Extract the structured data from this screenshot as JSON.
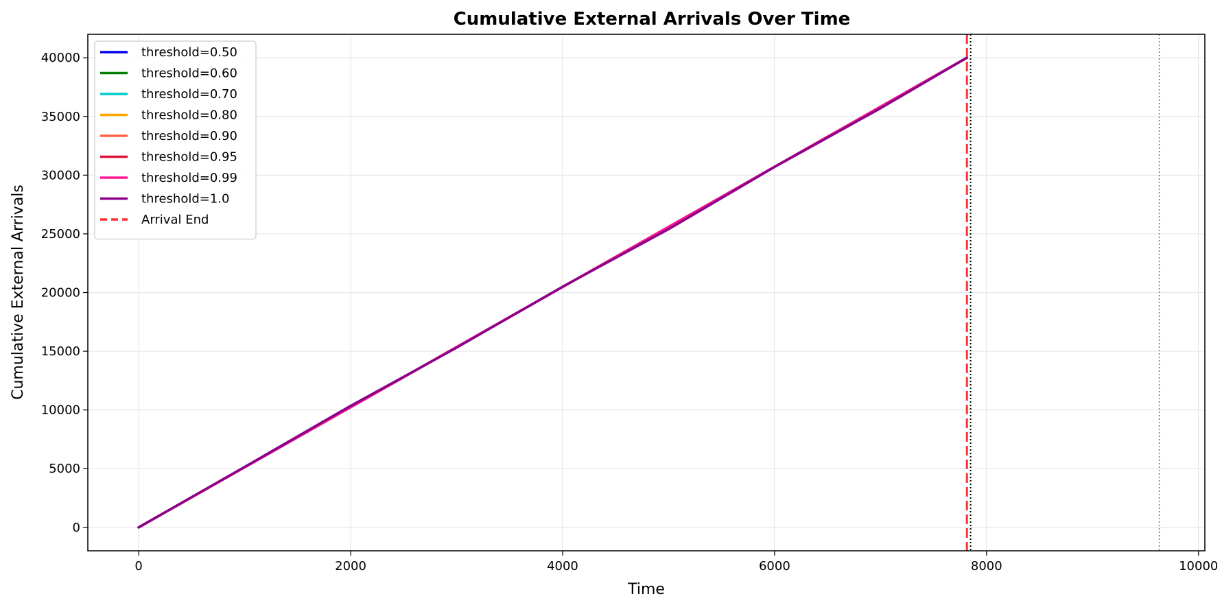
{
  "chart_data": {
    "type": "line",
    "title": "Cumulative External Arrivals Over Time",
    "xlabel": "Time",
    "ylabel": "Cumulative External Arrivals",
    "xlim": [
      -480,
      10060
    ],
    "ylim": [
      -2000,
      42000
    ],
    "xticks": [
      0,
      2000,
      4000,
      6000,
      8000,
      10000
    ],
    "yticks": [
      0,
      5000,
      10000,
      15000,
      20000,
      25000,
      30000,
      35000,
      40000
    ],
    "grid": true,
    "legend_position": "upper-left",
    "series": [
      {
        "name": "threshold=0.50",
        "color": "#0000ee",
        "x": [
          0,
          7815
        ],
        "y": [
          0,
          40000
        ]
      },
      {
        "name": "threshold=0.60",
        "color": "#008000",
        "x": [
          0,
          7815
        ],
        "y": [
          0,
          40000
        ]
      },
      {
        "name": "threshold=0.70",
        "color": "#00cccc",
        "x": [
          0,
          7815
        ],
        "y": [
          0,
          40000
        ]
      },
      {
        "name": "threshold=0.80",
        "color": "#ffa500",
        "x": [
          0,
          7815
        ],
        "y": [
          0,
          40000
        ]
      },
      {
        "name": "threshold=0.90",
        "color": "#ff6347",
        "x": [
          0,
          7815
        ],
        "y": [
          0,
          40000
        ]
      },
      {
        "name": "threshold=0.95",
        "color": "#dc143c",
        "x": [
          0,
          7815
        ],
        "y": [
          0,
          40000
        ]
      },
      {
        "name": "threshold=0.99",
        "color": "#ff1493",
        "x": [
          0,
          7815
        ],
        "y": [
          0,
          40000
        ]
      },
      {
        "name": "threshold=1.0",
        "color": "#8b008b",
        "x": [
          0,
          1000,
          2000,
          3000,
          4000,
          5000,
          6000,
          7000,
          7815
        ],
        "y": [
          0,
          5150,
          10350,
          15300,
          20500,
          25400,
          30700,
          35700,
          40000
        ]
      }
    ],
    "reference_lines": [
      {
        "name": "Arrival End",
        "x": 7815,
        "color": "#ff3333",
        "style": "dashed",
        "in_legend": true
      },
      {
        "name": "end-black",
        "x": 7850,
        "color": "#000000",
        "style": "dotted",
        "in_legend": false
      },
      {
        "name": "end-purple",
        "x": 9630,
        "color": "#cc33cc",
        "style": "dotted",
        "in_legend": false
      }
    ]
  }
}
